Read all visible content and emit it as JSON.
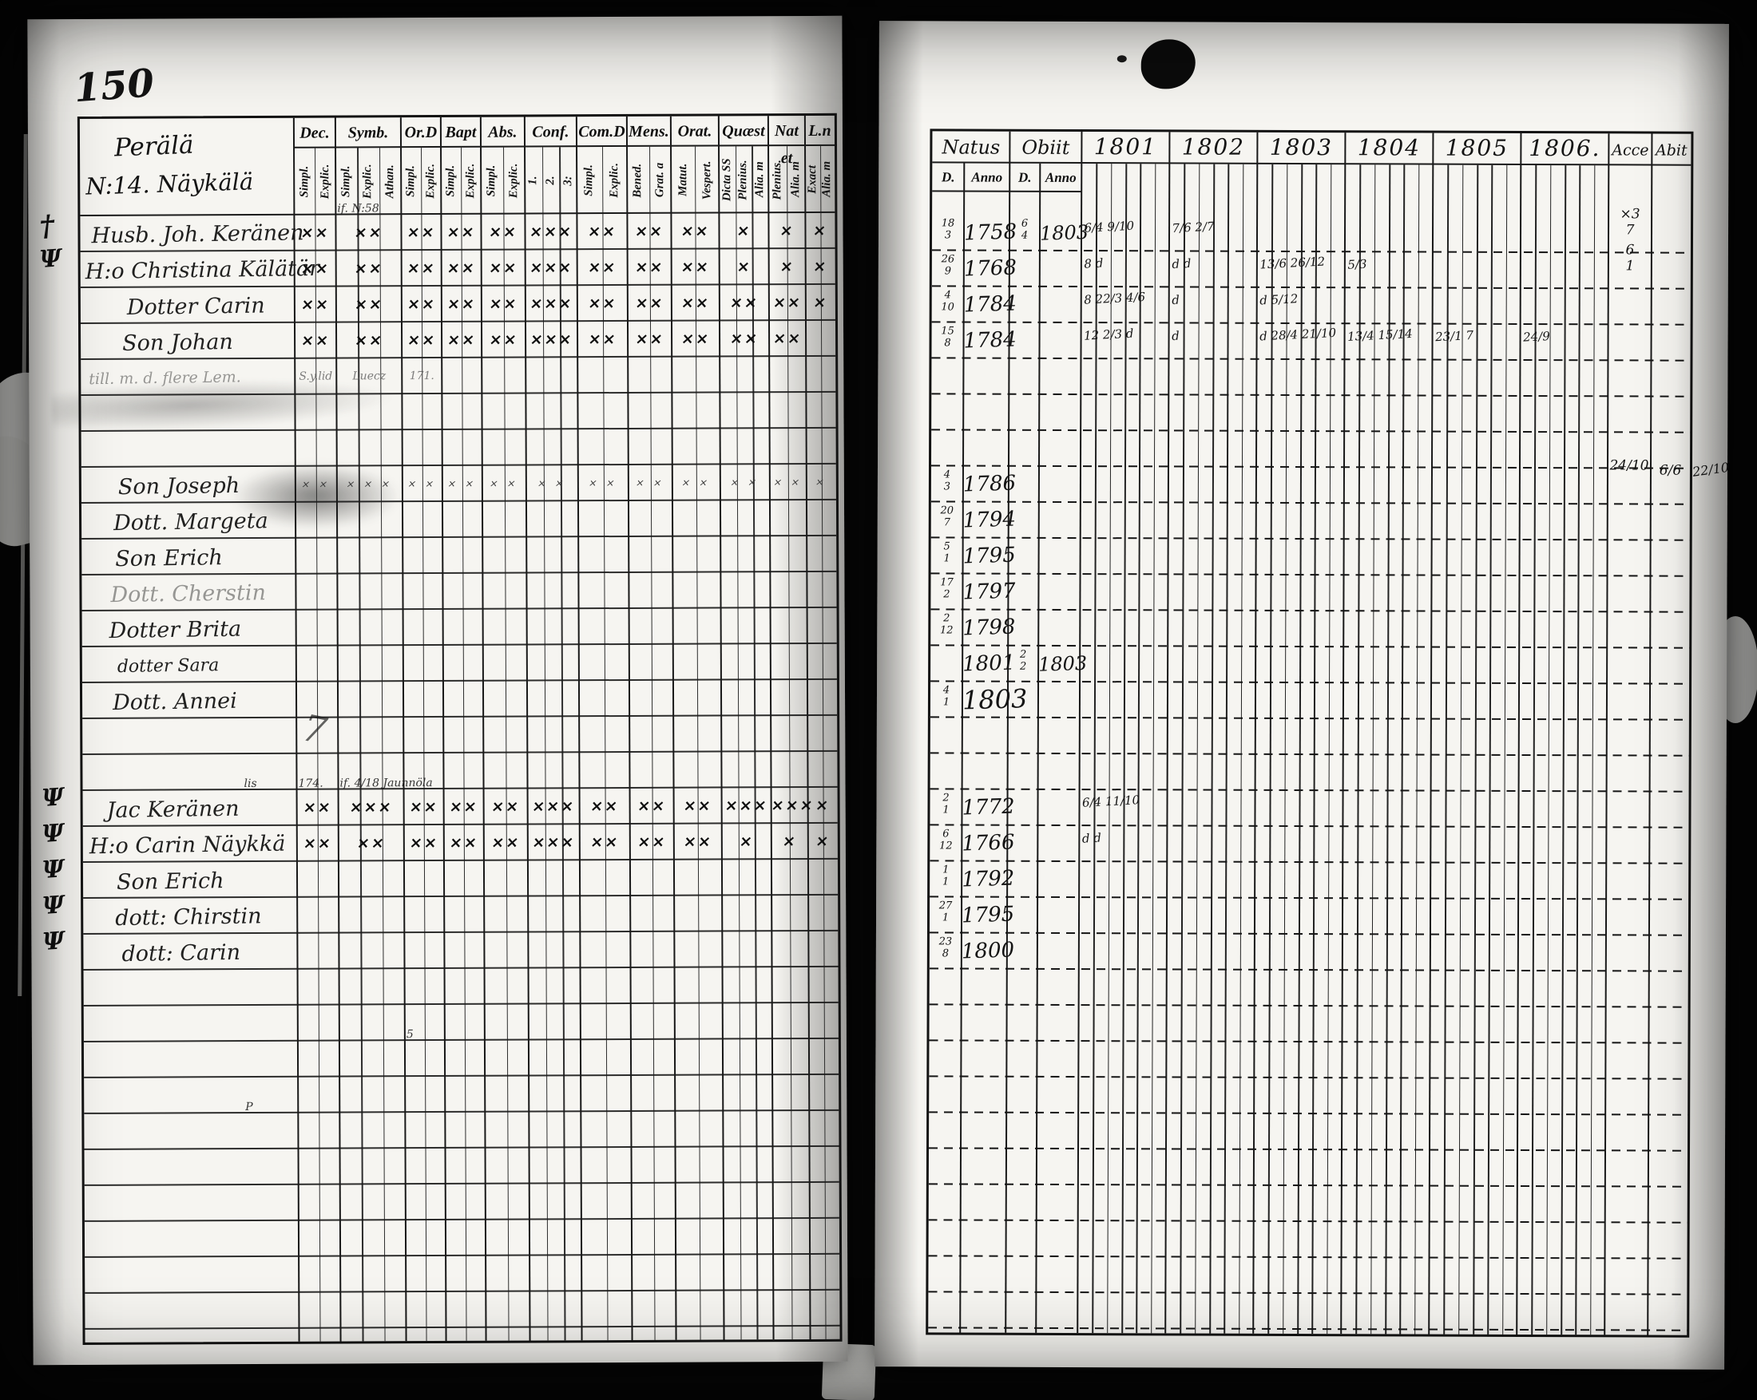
{
  "page": {
    "number": "150",
    "village_line1": "Perälä",
    "village_line2": "N:14. Näykälä"
  },
  "left_table": {
    "columns": [
      {
        "label": "Dec.",
        "subs": [
          "Simpl.",
          "Explic."
        ]
      },
      {
        "label": "Symb.",
        "subs": [
          "Simpl.",
          "Explic.",
          "Athan."
        ]
      },
      {
        "label": "Or.D",
        "subs": [
          "Simpl.",
          "Explic."
        ]
      },
      {
        "label": "Bapt",
        "subs": [
          "Simpl.",
          "Explic."
        ]
      },
      {
        "label": "Abs.",
        "subs": [
          "Simpl.",
          "Explic."
        ]
      },
      {
        "label": "Conf.",
        "subs": [
          "1.",
          "2.",
          "3:"
        ]
      },
      {
        "label": "Com.D",
        "subs": [
          "Simpl.",
          "Explic."
        ]
      },
      {
        "label": "Mens.",
        "subs": [
          "Bened.",
          "Grat. a"
        ]
      },
      {
        "label": "Orat.",
        "subs": [
          "Matut.",
          "Vespert."
        ]
      },
      {
        "label": "Quæst",
        "subs": [
          "Dicta SS",
          "Plenius.",
          "Alia. m"
        ]
      },
      {
        "label": "Nat et",
        "subs": [
          "Plenius.",
          "Alia. m"
        ]
      },
      {
        "label": "L.n",
        "subs": [
          "Exact",
          "Alia. m"
        ]
      }
    ]
  },
  "right_table": {
    "natus_label": "Natus",
    "obiit_label": "Obiit",
    "day_label": "D.",
    "anno_label": "Anno",
    "years": [
      "1801",
      "1802",
      "1803",
      "1804",
      "1805",
      "1806."
    ],
    "acce_label": "Acce",
    "abit_label": "Abit"
  },
  "rows": [
    {
      "margin": "†",
      "name": "Husb. Joh. Keränen",
      "marks": [
        "××",
        "××",
        "××",
        "××",
        "××",
        "×××",
        "××",
        "××",
        "××",
        "×",
        "×",
        "×"
      ],
      "natus_d": "18/3",
      "natus_anno": "1758",
      "obiit_d": "6/4",
      "obiit_anno": "1803",
      "year_marks": {
        "1801": "6/4 9/10",
        "1802": "7/6 2/7"
      },
      "acce": "×3\n7"
    },
    {
      "margin": "Ψ",
      "name": "H:o Christina Kälätär",
      "marks": [
        "××",
        "××",
        "××",
        "××",
        "××",
        "×××",
        "××",
        "××",
        "××",
        "×",
        "×",
        "×"
      ],
      "natus_d": "26/9",
      "natus_anno": "1768",
      "year_marks": {
        "1801": "8  d",
        "1802": "d  d",
        "1803": "13/6 26/12",
        "1804": "5/3"
      },
      "acce": "6\n1"
    },
    {
      "name": "Dotter Carin",
      "marks": [
        "××",
        "××",
        "××",
        "××",
        "××",
        "×××",
        "××",
        "××",
        "××",
        "××",
        "××",
        "×"
      ],
      "natus_d": "4/10",
      "natus_anno": "1784",
      "year_marks": {
        "1801": "8 22/3 4/6",
        "1802": "d",
        "1803": "d 5/12"
      }
    },
    {
      "name": "Son Johan",
      "marks": [
        "××",
        "××",
        "××",
        "××",
        "××",
        "×××",
        "××",
        "××",
        "××",
        "××",
        "××",
        ""
      ],
      "natus_d": "15/8",
      "natus_anno": "1784",
      "year_marks": {
        "1801": "12 2/3 d",
        "1802": "d",
        "1803": "d 28/4 21/10",
        "1804": "13/4 15/14",
        "1805": "23/1 7",
        "1806": "24/9"
      }
    },
    {
      "name": "till. m. d. flere Lem.",
      "faint": true,
      "note_row": true,
      "marks": [
        "S.y.lid",
        "Luecz",
        "171.",
        "",
        "",
        "",
        "",
        "",
        "",
        "",
        "",
        ""
      ]
    },
    {},
    {},
    {
      "name": "Son Joseph",
      "light": true,
      "marks": [
        "× ×",
        "× × ×",
        "× ×",
        "× ×",
        "× ×",
        "× ×",
        "× ×",
        "× ×",
        "× ×",
        "× ×",
        "× ×",
        "×"
      ],
      "natus_d": "4/3",
      "natus_anno": "1786",
      "acce": "24/10",
      "abit": "6/6"
    },
    {
      "name": "Dott. Margeta",
      "natus_d": "20/7",
      "natus_anno": "1794"
    },
    {
      "name": "Son Erich",
      "natus_d": "5/1",
      "natus_anno": "1795"
    },
    {
      "name": "Dott. Cherstin",
      "faint": true,
      "natus_d": "17/2",
      "natus_anno": "1797"
    },
    {
      "name": "Dotter Brita",
      "natus_d": "2/12",
      "natus_anno": "1798"
    },
    {
      "name": "dotter Sara",
      "small": true,
      "natus_anno": "1801",
      "obiit_d": "2/2",
      "obiit_anno": "1803"
    },
    {
      "name": "Dott. Annei",
      "natus_d": "4/1",
      "natus_anno": "1803",
      "big_anno": true
    },
    {},
    {},
    {
      "margin": "Ψ",
      "name": "Jac Keränen",
      "marks": [
        "××",
        "×××",
        "××",
        "××",
        "××",
        "×××",
        "××",
        "××",
        "××",
        "×××",
        "×××",
        "×"
      ],
      "natus_d": "2/1",
      "natus_anno": "1772",
      "year_marks": {
        "1801": "6/4 11/10"
      }
    },
    {
      "margin": "Ψ",
      "name": "H:o Carin Näykkä",
      "marks": [
        "××",
        "××",
        "××",
        "××",
        "××",
        "×××",
        "××",
        "××",
        "××",
        "×",
        "×",
        "×"
      ],
      "natus_d": "6/12",
      "natus_anno": "1766",
      "year_marks": {
        "1801": "d  d"
      }
    },
    {
      "margin": "Ψ",
      "name": "Son Erich",
      "natus_d": "1/1",
      "natus_anno": "1792"
    },
    {
      "margin": "Ψ",
      "name": "dott: Chirstin",
      "natus_d": "27/1",
      "natus_anno": "1795"
    },
    {
      "margin": "Ψ",
      "name": "dott: Carin",
      "natus_d": "23/8",
      "natus_anno": "1800"
    },
    {},
    {},
    {},
    {},
    {},
    {},
    {},
    {},
    {},
    {}
  ],
  "annotations": [
    {
      "row": 0,
      "col": 1,
      "text": "if. N:58"
    },
    {
      "row": 16,
      "col": "name",
      "text": "lis"
    },
    {
      "row": 16,
      "col": 0,
      "text": "174."
    },
    {
      "row": 16,
      "col": 1,
      "text": "if. 4/18 Jaunnöla"
    },
    {
      "row": 15,
      "col": 0,
      "text": "7",
      "big": true
    },
    {
      "row": 23,
      "col": 2,
      "text": "5"
    },
    {
      "row": 25,
      "col": "name",
      "text": "P"
    }
  ],
  "margin_note_right": {
    "row": 7,
    "text": "22/10"
  }
}
